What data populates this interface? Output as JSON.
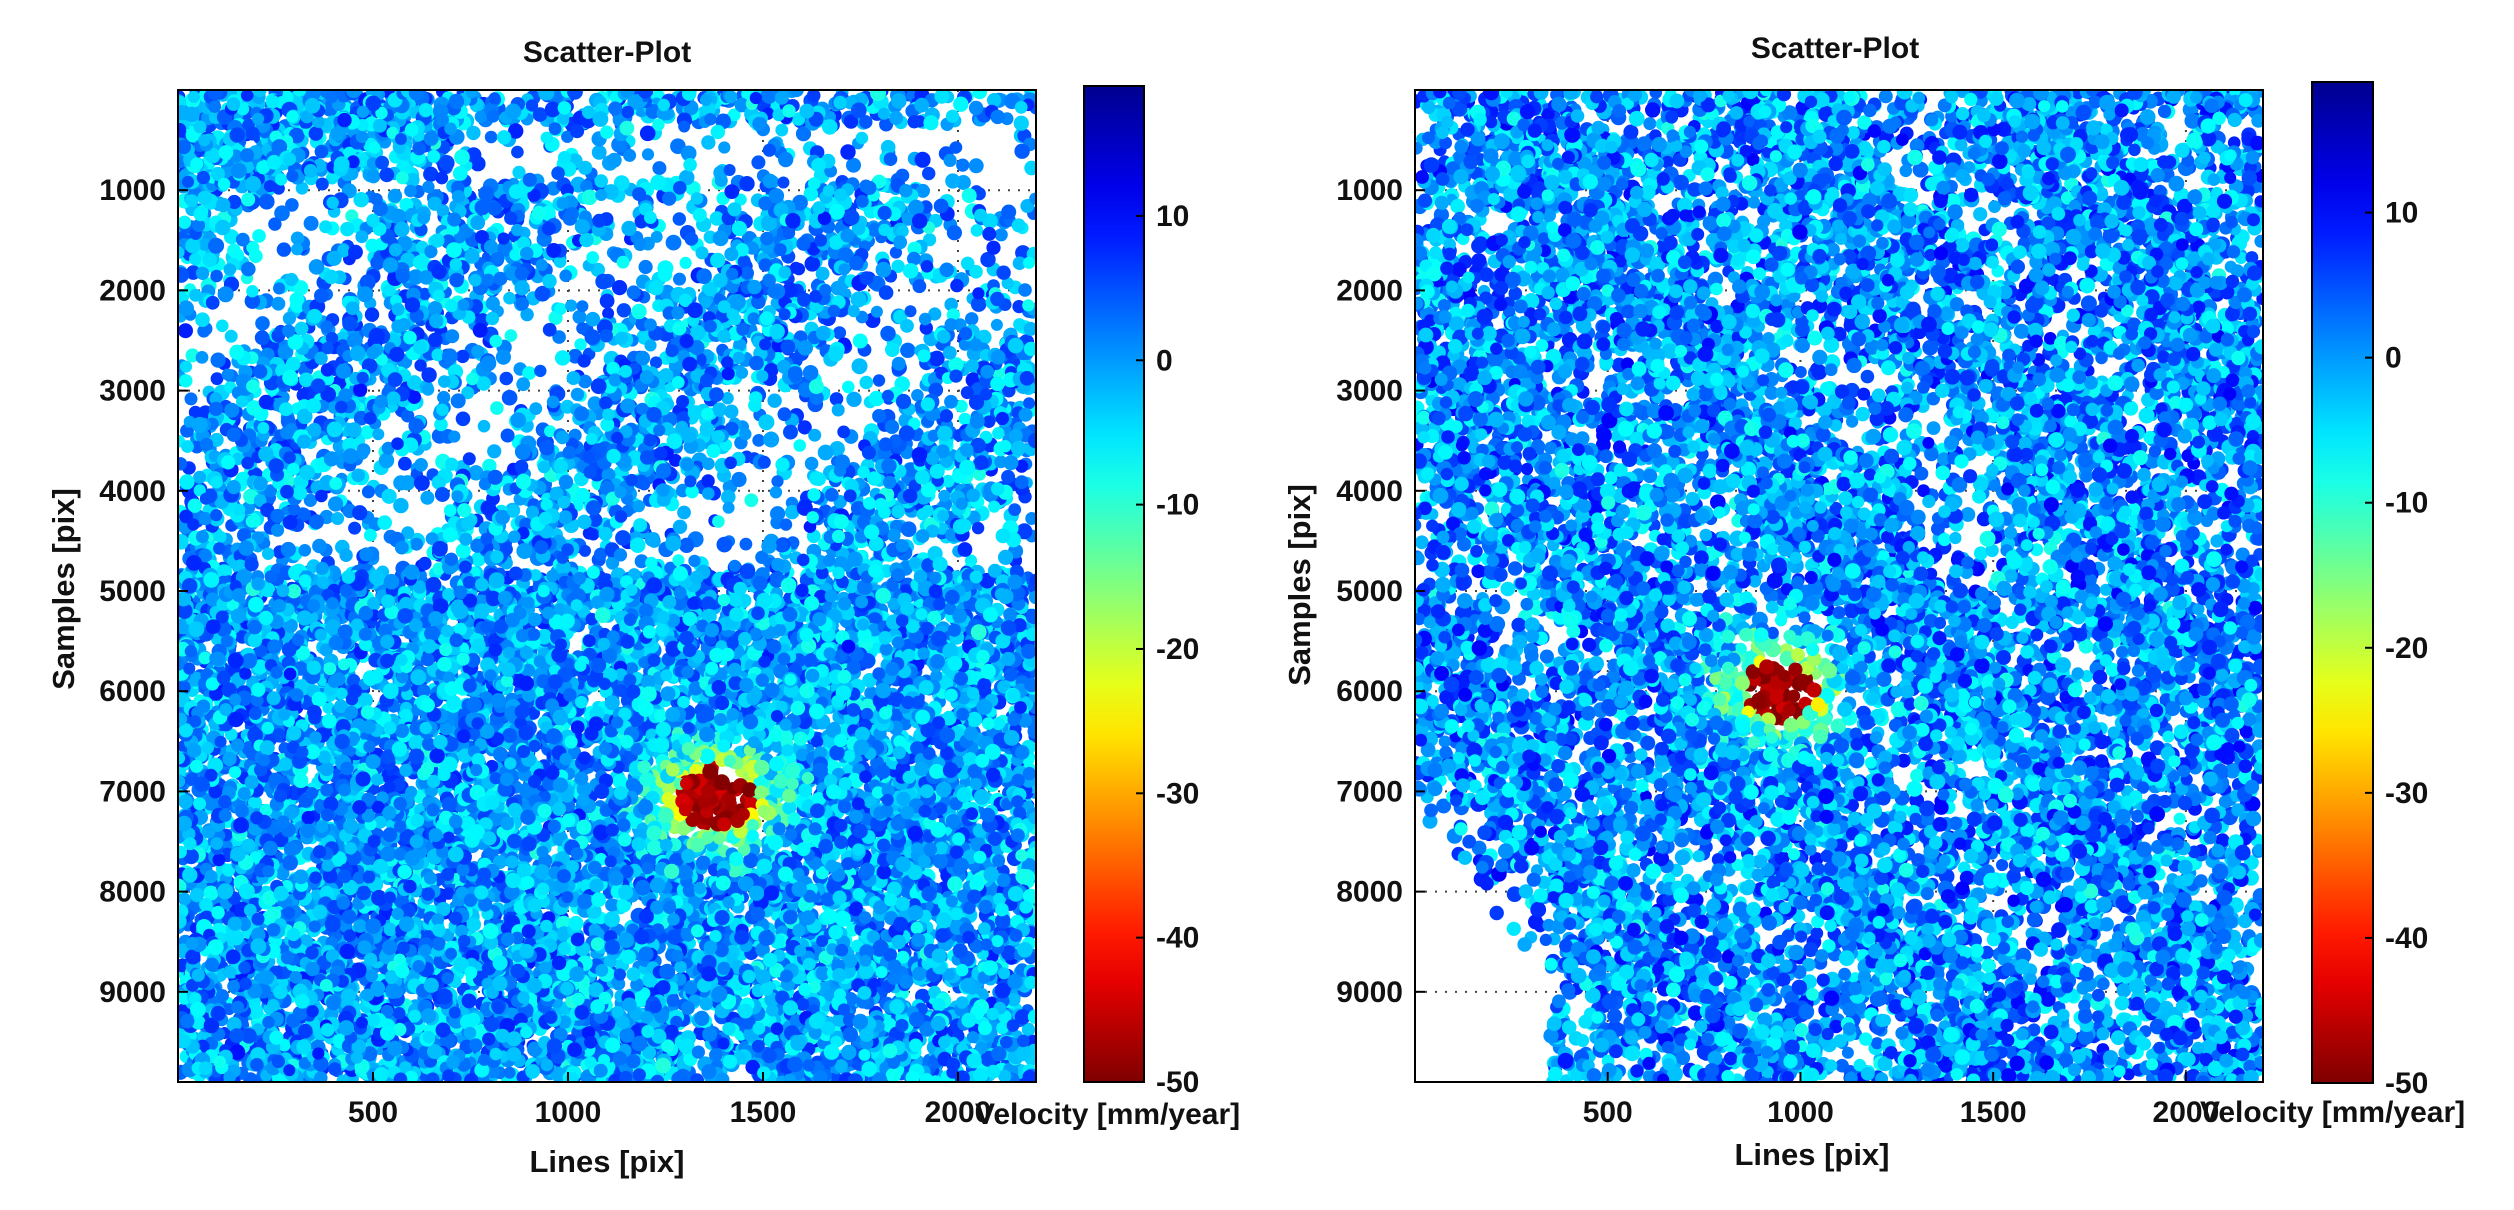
{
  "colormap": [
    "#7f0000",
    "#ff0000",
    "#ffff00",
    "#00ffff",
    "#0000ff",
    "#00008f"
  ],
  "chart_data": [
    {
      "type": "scatter",
      "title": "Scatter-Plot",
      "xlabel": "Lines [pix]",
      "ylabel": "Samples [pix]",
      "colorbar_label": "Velocity [mm/year]",
      "xlim": [
        0,
        2200
      ],
      "ylim": [
        0,
        9900
      ],
      "xticks": [
        500,
        1000,
        1500,
        2000
      ],
      "yticks": [
        1000,
        2000,
        3000,
        4000,
        5000,
        6000,
        7000,
        8000,
        9000
      ],
      "clim": [
        -50,
        19
      ],
      "cticks": [
        10,
        0,
        -10,
        -20,
        -30,
        -40,
        -50
      ],
      "grid": true,
      "anomaly": {
        "x": 1380,
        "y": 7050,
        "min_velocity": -50
      },
      "background_velocity_range": [
        -8,
        8
      ],
      "point_count_approx": 20000
    },
    {
      "type": "scatter",
      "title": "Scatter-Plot",
      "xlabel": "Lines [pix]",
      "ylabel": "Samples [pix]",
      "colorbar_label": "Velocity [mm/year]",
      "xlim": [
        0,
        2200
      ],
      "ylim": [
        0,
        9900
      ],
      "xticks": [
        500,
        1000,
        1500,
        2000
      ],
      "yticks": [
        1000,
        2000,
        3000,
        4000,
        5000,
        6000,
        7000,
        8000,
        9000
      ],
      "clim": [
        -50,
        19
      ],
      "cticks": [
        10,
        0,
        -10,
        -20,
        -30,
        -40,
        -50
      ],
      "grid": true,
      "anomaly": {
        "x": 950,
        "y": 6000,
        "min_velocity": -50
      },
      "background_velocity_range": [
        -8,
        10
      ],
      "point_count_approx": 20000
    }
  ]
}
